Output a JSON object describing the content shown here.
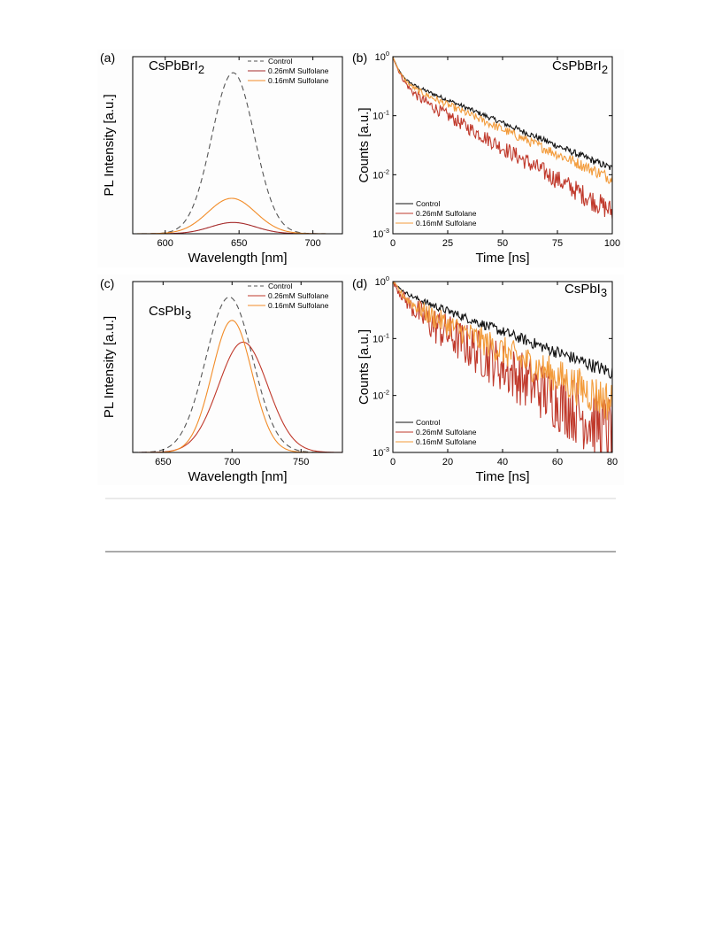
{
  "chart_data": [
    {
      "panel": "(a)",
      "sample": "CsPbBrI",
      "sample_sub": "2",
      "type": "line",
      "xlabel": "Wavelength [nm]",
      "ylabel": "PL Intensity [a.u.]",
      "xlim": [
        578,
        720
      ],
      "ylim": [
        0,
        1.1
      ],
      "xticks": [
        600,
        650,
        700
      ],
      "legend_position": "top-right",
      "series": [
        {
          "name": "Control",
          "color": "#555555",
          "dash": "6,4",
          "peak_x": 646,
          "peak_y": 1.0,
          "fwhm": 34
        },
        {
          "name": "0.26mM Sulfolane",
          "color": "#a52a2a",
          "dash": "",
          "peak_x": 646,
          "peak_y": 0.07,
          "fwhm": 36
        },
        {
          "name": "0.16mM Sulfolane",
          "color": "#f28c28",
          "dash": "",
          "peak_x": 645,
          "peak_y": 0.22,
          "fwhm": 38
        }
      ]
    },
    {
      "panel": "(b)",
      "sample": "CsPbBrI",
      "sample_sub": "2",
      "type": "line",
      "xlabel": "Time [ns]",
      "ylabel": "Counts [a.u.]",
      "xlim": [
        0,
        100
      ],
      "ylim": [
        0.001,
        1
      ],
      "yscale": "log",
      "xticks": [
        0,
        25,
        50,
        75,
        100
      ],
      "yticks_exp": [
        0,
        -1,
        -2,
        -3
      ],
      "legend_position": "bottom-left",
      "series": [
        {
          "name": "Control",
          "color": "#111111",
          "A1": 0.55,
          "tau1": 2.5,
          "A2": 0.45,
          "tau2": 28,
          "noise": 0.06
        },
        {
          "name": "0.26mM Sulfolane",
          "color": "#c0392b",
          "A1": 0.65,
          "tau1": 3.0,
          "A2": 0.35,
          "tau2": 20,
          "noise": 0.18
        },
        {
          "name": "0.16mM Sulfolane",
          "color": "#f39c3c",
          "A1": 0.6,
          "tau1": 2.8,
          "A2": 0.4,
          "tau2": 26,
          "noise": 0.1
        }
      ]
    },
    {
      "panel": "(c)",
      "sample": "CsPbI",
      "sample_sub": "3",
      "type": "line",
      "xlabel": "Wavelength [nm]",
      "ylabel": "PL Intensity [a.u.]",
      "xlim": [
        628,
        780
      ],
      "ylim": [
        0,
        1.1
      ],
      "xticks": [
        650,
        700,
        750
      ],
      "legend_position": "top-right",
      "series": [
        {
          "name": "Control",
          "color": "#555555",
          "dash": "6,4",
          "peak_x": 698,
          "peak_y": 1.0,
          "fwhm": 40
        },
        {
          "name": "0.26mM Sulfolane",
          "color": "#c0392b",
          "dash": "",
          "peak_x": 708,
          "peak_y": 0.71,
          "fwhm": 42
        },
        {
          "name": "0.16mM Sulfolane",
          "color": "#f28c28",
          "dash": "",
          "peak_x": 700,
          "peak_y": 0.85,
          "fwhm": 34
        }
      ]
    },
    {
      "panel": "(d)",
      "sample": "CsPbI",
      "sample_sub": "3",
      "type": "line",
      "xlabel": "Time [ns]",
      "ylabel": "Counts [a.u.]",
      "xlim": [
        0,
        80
      ],
      "ylim": [
        0.001,
        1
      ],
      "yscale": "log",
      "xticks": [
        0,
        20,
        40,
        60,
        80
      ],
      "yticks_exp": [
        0,
        -1,
        -2,
        -3
      ],
      "legend_position": "bottom-left",
      "series": [
        {
          "name": "Control",
          "color": "#111111",
          "A1": 0.3,
          "tau1": 3,
          "A2": 0.7,
          "tau2": 24,
          "noise": 0.12
        },
        {
          "name": "0.26mM Sulfolane",
          "color": "#c0392b",
          "A1": 0.55,
          "tau1": 3.5,
          "A2": 0.45,
          "tau2": 15,
          "noise": 0.6
        },
        {
          "name": "0.16mM Sulfolane",
          "color": "#f39c3c",
          "A1": 0.5,
          "tau1": 3.5,
          "A2": 0.5,
          "tau2": 19,
          "noise": 0.35
        }
      ]
    }
  ]
}
